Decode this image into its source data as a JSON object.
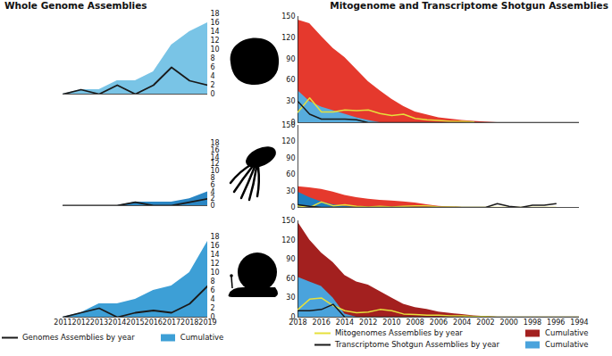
{
  "chart_data": [
    {
      "type": "line",
      "title": "Whole Genome Assemblies",
      "x": [
        2011,
        2012,
        2013,
        2014,
        2015,
        2016,
        2017,
        2018,
        2019
      ],
      "xlim": [
        2011,
        2019
      ],
      "ylim": [
        0,
        18
      ],
      "yticks": [
        0,
        2,
        4,
        6,
        8,
        10,
        12,
        14,
        16,
        18
      ],
      "tick_labels": "y",
      "series": [
        {
          "name": "Cumulative",
          "type": "area",
          "color": "#79c4e6",
          "values": [
            0,
            1,
            1,
            3,
            3,
            5,
            11,
            14,
            16
          ]
        },
        {
          "name": "Genomes Assemblies by year",
          "type": "line",
          "color": "#1a1a1a",
          "values": [
            0,
            1,
            0,
            2,
            0,
            2,
            6,
            3,
            2
          ]
        }
      ]
    },
    {
      "type": "line",
      "title": "Mitogenome and Transcriptome Shotgun Assemblies",
      "x": [
        2018,
        2017,
        2016,
        2015,
        2014,
        2013,
        2012,
        2011,
        2010,
        2009,
        2008,
        2007,
        2006,
        2005,
        2004,
        2003,
        2002,
        2001,
        2000,
        1999,
        1998,
        1997,
        1996,
        1995,
        1994
      ],
      "xlim": [
        2018,
        1994
      ],
      "ylim": [
        0,
        150
      ],
      "yticks": [
        0,
        30,
        60,
        90,
        120,
        150
      ],
      "tick_labels": "y",
      "series": [
        {
          "name": "Cumulative",
          "type": "area",
          "color": "#e5392d",
          "values": [
            145,
            140,
            122,
            105,
            92,
            75,
            58,
            45,
            33,
            23,
            15,
            11,
            7,
            5,
            3,
            2,
            1,
            0,
            0,
            0,
            0,
            0,
            0,
            0,
            0
          ]
        },
        {
          "name": "Cumulative",
          "type": "area",
          "color": "#57acdd",
          "values": [
            45,
            30,
            22,
            17,
            12,
            7,
            3,
            0,
            0,
            0,
            0,
            0,
            0,
            0,
            0,
            0,
            0,
            0,
            0,
            0,
            0,
            0,
            0,
            0,
            0
          ]
        },
        {
          "name": "Mitogenomes Assemblies by year",
          "type": "line",
          "color": "#e6e03c",
          "values": [
            15,
            35,
            15,
            15,
            18,
            17,
            18,
            13,
            10,
            12,
            6,
            4,
            3,
            2,
            2,
            1,
            null,
            null,
            null,
            null,
            null,
            null,
            null,
            null,
            null
          ]
        },
        {
          "name": "Transcriptome Shotgun Assemblies by year",
          "type": "line",
          "color": "#1a1a1a",
          "values": [
            30,
            12,
            5,
            5,
            5,
            4,
            0,
            0,
            0,
            0,
            0,
            0,
            0,
            0,
            0,
            0,
            0,
            0,
            0,
            0,
            0,
            0,
            0,
            0,
            0
          ]
        }
      ]
    },
    {
      "type": "line",
      "x": [
        2011,
        2012,
        2013,
        2014,
        2015,
        2016,
        2017,
        2018,
        2019
      ],
      "xlim": [
        2011,
        2019
      ],
      "ylim": [
        0,
        18
      ],
      "yticks": [
        0,
        2,
        4,
        6,
        8,
        10,
        12,
        14,
        16,
        18
      ],
      "tick_labels": "y",
      "series": [
        {
          "name": "Cumulative",
          "type": "area",
          "color": "#2a86c4",
          "values": [
            0,
            0,
            0,
            0,
            1,
            1,
            1,
            2,
            4
          ]
        },
        {
          "name": "Genomes Assemblies by year",
          "type": "line",
          "color": "#1a1a1a",
          "values": [
            0,
            0,
            0,
            0,
            1,
            0,
            0,
            1,
            2
          ]
        }
      ]
    },
    {
      "type": "line",
      "x": [
        2018,
        2017,
        2016,
        2015,
        2014,
        2013,
        2012,
        2011,
        2010,
        2009,
        2008,
        2007,
        2006,
        2005,
        2004,
        2003,
        2002,
        2001,
        2000,
        1999,
        1998,
        1997,
        1996,
        1995,
        1994
      ],
      "xlim": [
        2018,
        1994
      ],
      "ylim": [
        0,
        150
      ],
      "yticks": [
        0,
        30,
        60,
        90,
        120,
        150
      ],
      "tick_labels": "y",
      "series": [
        {
          "name": "Cumulative",
          "type": "area",
          "color": "#e5392d",
          "values": [
            38,
            36,
            33,
            28,
            22,
            18,
            15,
            13,
            12,
            10,
            8,
            5,
            2,
            1,
            0,
            0,
            0,
            0,
            0,
            0,
            0,
            0,
            0,
            0,
            0
          ]
        },
        {
          "name": "Cumulative",
          "type": "area",
          "color": "#1e7fc0",
          "values": [
            28,
            18,
            10,
            5,
            2,
            0,
            0,
            0,
            0,
            0,
            0,
            0,
            0,
            0,
            0,
            0,
            0,
            0,
            0,
            0,
            0,
            0,
            0,
            0,
            0
          ]
        },
        {
          "name": "Mitogenomes Assemblies by year",
          "type": "line",
          "color": "#e6e03c",
          "values": [
            3,
            0,
            10,
            3,
            5,
            2,
            1,
            2,
            1,
            2,
            3,
            3,
            1,
            1,
            0,
            0,
            0,
            0,
            0,
            0,
            0,
            0,
            0,
            null,
            null
          ]
        },
        {
          "name": "Transcriptome Shotgun Assemblies by year",
          "type": "line",
          "color": "#1a1a1a",
          "values": [
            5,
            2,
            0,
            0,
            0,
            0,
            0,
            0,
            0,
            0,
            0,
            0,
            0,
            0,
            0,
            0,
            0,
            7,
            2,
            0,
            4,
            4,
            7,
            null,
            null
          ]
        }
      ]
    },
    {
      "type": "line",
      "legend": "bottom",
      "x": [
        2011,
        2012,
        2013,
        2014,
        2015,
        2016,
        2017,
        2018,
        2019
      ],
      "xlim": [
        2011,
        2019
      ],
      "xticks": [
        2011,
        2012,
        2013,
        2014,
        2015,
        2016,
        2017,
        2018,
        2019
      ],
      "ylim": [
        0,
        18
      ],
      "yticks": [
        0,
        2,
        4,
        6,
        8,
        10,
        12,
        14,
        16,
        18
      ],
      "series": [
        {
          "name": "Cumulative",
          "type": "area",
          "color": "#3d9fd6",
          "values": [
            0,
            1,
            3,
            3,
            4,
            6,
            7,
            10,
            17
          ]
        },
        {
          "name": "Genomes Assemblies by year",
          "type": "line",
          "color": "#1a1a1a",
          "values": [
            0,
            1,
            2,
            0,
            1,
            1.5,
            1,
            3,
            7
          ]
        }
      ]
    },
    {
      "type": "line",
      "legend": "bottom",
      "x": [
        2018,
        2017,
        2016,
        2015,
        2014,
        2013,
        2012,
        2011,
        2010,
        2009,
        2008,
        2007,
        2006,
        2005,
        2004,
        2003,
        2002,
        2001,
        2000,
        1999,
        1998,
        1997,
        1996,
        1995,
        1994
      ],
      "xlim": [
        2018,
        1994
      ],
      "xticks": [
        2018,
        2016,
        2014,
        2012,
        2010,
        2008,
        2006,
        2004,
        2002,
        2000,
        1998,
        1996,
        1994
      ],
      "ylim": [
        0,
        150
      ],
      "yticks": [
        0,
        30,
        60,
        90,
        120,
        150
      ],
      "series": [
        {
          "name": "Cumulative",
          "type": "area",
          "color": "#a3201f",
          "values": [
            148,
            120,
            100,
            85,
            65,
            55,
            50,
            40,
            30,
            20,
            15,
            12,
            8,
            6,
            4,
            2,
            1,
            0,
            0,
            0,
            0,
            0,
            0,
            0,
            0
          ]
        },
        {
          "name": "Cumulative",
          "type": "area",
          "color": "#4aa3dc",
          "values": [
            62,
            55,
            48,
            30,
            5,
            0,
            0,
            0,
            0,
            0,
            0,
            0,
            0,
            0,
            0,
            0,
            0,
            0,
            0,
            0,
            0,
            0,
            0,
            0,
            0
          ]
        },
        {
          "name": "Mitogenomes Assemblies by year",
          "type": "line",
          "color": "#e6e03c",
          "values": [
            12,
            28,
            30,
            18,
            10,
            7,
            8,
            12,
            10,
            5,
            4,
            3,
            3,
            2,
            2,
            1,
            1,
            0,
            0,
            0,
            0,
            0,
            0,
            0,
            0
          ]
        },
        {
          "name": "Transcriptome Shotgun Assemblies by year",
          "type": "line",
          "color": "#1a1a1a",
          "values": [
            10,
            10,
            12,
            20,
            0,
            0,
            0,
            0,
            0,
            0,
            0,
            0,
            0,
            0,
            0,
            0,
            0,
            0,
            0,
            0,
            0,
            0,
            0,
            0,
            0
          ]
        }
      ]
    }
  ]
}
